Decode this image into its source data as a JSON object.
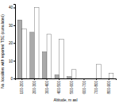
{
  "chart_data": {
    "type": "bar",
    "categories": [
      "100-200",
      "200-300",
      "300-400",
      "400-500",
      "500-600",
      "600-700",
      "700-800",
      "800-900"
    ],
    "series": [
      {
        "color": "#aaaaaa",
        "values": [
          33,
          26,
          15,
          2,
          1,
          0,
          0,
          0
        ]
      },
      {
        "color": "#ffffff",
        "values": [
          28,
          40,
          25,
          22,
          5,
          0,
          8,
          3
        ]
      }
    ],
    "xlabel": "Altitude, m asl",
    "ylabel": "No. localities with reported TBE (cumulated)",
    "ylim": [
      0,
      42
    ],
    "yticks": [
      0,
      10,
      20,
      30,
      40
    ],
    "grid": false
  }
}
